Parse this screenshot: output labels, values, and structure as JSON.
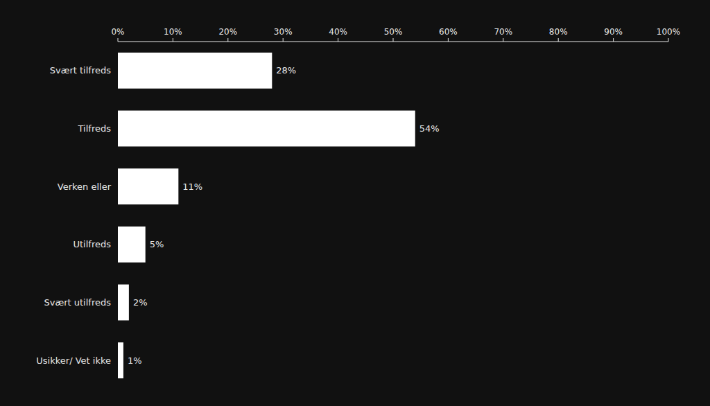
{
  "chart_data": {
    "type": "bar",
    "orientation": "horizontal",
    "categories": [
      "Svært tilfreds",
      "Tilfreds",
      "Verken eller",
      "Utilfreds",
      "Svært utilfreds",
      "Usikker/ Vet ikke"
    ],
    "values": [
      28,
      54,
      11,
      5,
      2,
      1
    ],
    "value_labels": [
      "28%",
      "54%",
      "11%",
      "5%",
      "2%",
      "1%"
    ],
    "data_labels": true,
    "color": "#ffffff",
    "xlim": [
      0,
      100
    ],
    "xticks": [
      {
        "value": 0,
        "label": "0%"
      },
      {
        "value": 10,
        "label": "10%"
      },
      {
        "value": 20,
        "label": "20%"
      },
      {
        "value": 30,
        "label": "30%"
      },
      {
        "value": 40,
        "label": "40%"
      },
      {
        "value": 50,
        "label": "50%"
      },
      {
        "value": 60,
        "label": "60%"
      },
      {
        "value": 70,
        "label": "70%"
      },
      {
        "value": 80,
        "label": "80%"
      },
      {
        "value": 90,
        "label": "90%"
      },
      {
        "value": 100,
        "label": "100%"
      }
    ],
    "grid": false
  }
}
